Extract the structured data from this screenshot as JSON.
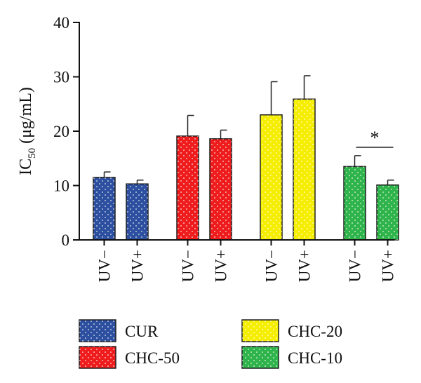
{
  "chart_data": {
    "type": "bar",
    "ylabel": "IC",
    "ylabel_subscript": "50",
    "ylabel_unit": "(μg/mL)",
    "ylim": [
      0,
      40
    ],
    "yticks": [
      0,
      10,
      20,
      30,
      40
    ],
    "grid": false,
    "legend_placement": "bottom",
    "groups": [
      {
        "name": "CUR",
        "color": "#2d4fa0",
        "bars": [
          {
            "label": "UV−",
            "value": 11.5,
            "error": 1.0
          },
          {
            "label": "UV+",
            "value": 10.3,
            "error": 0.7
          }
        ]
      },
      {
        "name": "CHC-50",
        "color": "#ee1c1c",
        "bars": [
          {
            "label": "UV−",
            "value": 19.1,
            "error": 3.8
          },
          {
            "label": "UV+",
            "value": 18.6,
            "error": 1.6
          }
        ]
      },
      {
        "name": "CHC-20",
        "color": "#f5ee00",
        "bars": [
          {
            "label": "UV−",
            "value": 23.0,
            "error": 6.1
          },
          {
            "label": "UV+",
            "value": 25.9,
            "error": 4.3
          }
        ]
      },
      {
        "name": "CHC-10",
        "color": "#2fb44b",
        "bars": [
          {
            "label": "UV−",
            "value": 13.5,
            "error": 2.0
          },
          {
            "label": "UV+",
            "value": 10.1,
            "error": 0.9
          }
        ]
      }
    ],
    "annotations": [
      {
        "text": "*",
        "group": "CHC-10",
        "type": "significance"
      }
    ],
    "legend": [
      {
        "name": "CUR",
        "color": "#2d4fa0"
      },
      {
        "name": "CHC-20",
        "color": "#f5ee00"
      },
      {
        "name": "CHC-50",
        "color": "#ee1c1c"
      },
      {
        "name": "CHC-10",
        "color": "#2fb44b"
      }
    ]
  }
}
